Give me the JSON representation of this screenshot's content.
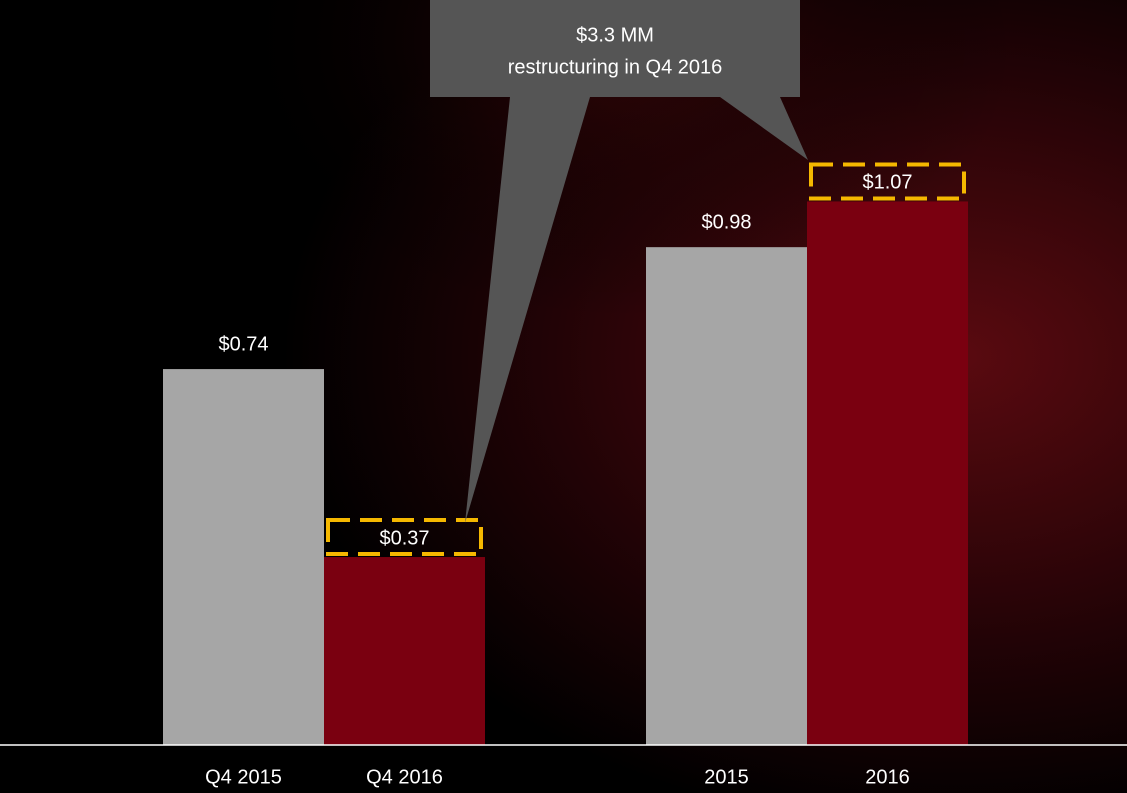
{
  "chart_data": {
    "type": "bar",
    "categories": [
      "Q4 2015",
      "Q4 2016",
      "2015",
      "2016"
    ],
    "values": [
      0.74,
      0.37,
      0.98,
      1.07
    ],
    "value_labels": [
      "$0.74",
      "$0.37",
      "$0.98",
      "$1.07"
    ],
    "colors": [
      "#a6a6a6",
      "#7a0010",
      "#a6a6a6",
      "#7a0010"
    ],
    "highlight": [
      false,
      true,
      false,
      true
    ],
    "annotation": [
      "$3.3 MM",
      "restructuring in Q4 2016"
    ]
  }
}
